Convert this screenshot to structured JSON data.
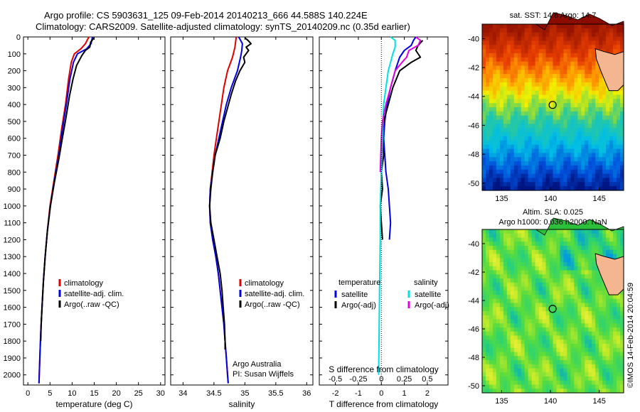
{
  "header": {
    "line1": "Argo profile: CS 5903631_125 09-Feb-2014 20140213_666 44.588S 140.224E",
    "line2": "Climatology: CARS2009. Satellite-adjusted climatology: synTS_20140209.nc (0.35d earlier)"
  },
  "colors": {
    "climatology": "#e00000",
    "satellite": "#0000e0",
    "argo": "#000000",
    "salinity_satellite": "#00e0e0",
    "salinity_argo": "#e000e0"
  },
  "chart_data": [
    {
      "type": "line",
      "panel": "temperature",
      "xlabel": "temperature (deg C)",
      "xlim": [
        -1,
        31
      ],
      "xticks": [
        0,
        5,
        10,
        15,
        20,
        25,
        30
      ],
      "ylim": [
        2060,
        0
      ],
      "yticks": [
        0,
        100,
        200,
        300,
        400,
        500,
        600,
        700,
        800,
        900,
        1000,
        1100,
        1200,
        1300,
        1400,
        1500,
        1600,
        1700,
        1800,
        1900,
        2000
      ],
      "legend": [
        "climatology",
        "satellite-adj. clim.",
        "Argo(..raw -QC)"
      ],
      "series": [
        {
          "name": "climatology",
          "color": "climatology",
          "points": [
            [
              13.8,
              0
            ],
            [
              13,
              40
            ],
            [
              12,
              70
            ],
            [
              10.5,
              100
            ],
            [
              9.8,
              150
            ],
            [
              9.2,
              250
            ],
            [
              8.5,
              400
            ],
            [
              7.6,
              550
            ],
            [
              6.8,
              700
            ],
            [
              5.9,
              850
            ],
            [
              5.0,
              1000
            ],
            [
              4.4,
              1150
            ],
            [
              3.9,
              1300
            ],
            [
              3.5,
              1450
            ],
            [
              3.2,
              1600
            ],
            [
              2.9,
              1750
            ],
            [
              2.7,
              1900
            ],
            [
              2.5,
              2050
            ]
          ]
        },
        {
          "name": "satellite-adj. clim.",
          "color": "satellite",
          "points": [
            [
              14.6,
              0
            ],
            [
              14.3,
              40
            ],
            [
              13.3,
              70
            ],
            [
              11.2,
              100
            ],
            [
              10.3,
              150
            ],
            [
              9.5,
              250
            ],
            [
              8.7,
              400
            ],
            [
              7.8,
              550
            ],
            [
              7.0,
              700
            ],
            [
              6.0,
              850
            ],
            [
              5.1,
              1000
            ],
            [
              4.4,
              1150
            ],
            [
              3.9,
              1300
            ],
            [
              3.5,
              1450
            ],
            [
              3.2,
              1600
            ],
            [
              2.9,
              1750
            ],
            [
              2.7,
              1900
            ],
            [
              2.5,
              2050
            ]
          ]
        },
        {
          "name": "Argo(..raw -QC)",
          "color": "argo",
          "points": [
            [
              15.0,
              5
            ],
            [
              14.2,
              30
            ],
            [
              14.0,
              60
            ],
            [
              13.0,
              80
            ],
            [
              12.2,
              110
            ],
            [
              11.0,
              170
            ],
            [
              10.2,
              250
            ],
            [
              9.4,
              350
            ],
            [
              8.6,
              480
            ],
            [
              7.8,
              600
            ],
            [
              7.0,
              720
            ],
            [
              6.0,
              860
            ],
            [
              5.1,
              1000
            ],
            [
              4.4,
              1150
            ],
            [
              3.9,
              1300
            ],
            [
              3.5,
              1450
            ],
            [
              3.2,
              1600
            ],
            [
              3.0,
              1700
            ],
            [
              2.9,
              1800
            ]
          ]
        }
      ]
    },
    {
      "type": "line",
      "panel": "salinity",
      "xlabel": "salinity",
      "xlim": [
        33.8,
        36.1
      ],
      "xticks": [
        34,
        34.5,
        35,
        35.5,
        36
      ],
      "ylim": [
        2060,
        0
      ],
      "legend": [
        "climatology",
        "satellite-adj. clim.",
        "Argo(..raw -QC)"
      ],
      "annotation": [
        "Argo Australia",
        "PI: Susan Wijffels"
      ],
      "series": [
        {
          "name": "climatology",
          "color": "climatology",
          "points": [
            [
              34.86,
              0
            ],
            [
              34.84,
              60
            ],
            [
              34.8,
              120
            ],
            [
              34.72,
              200
            ],
            [
              34.66,
              300
            ],
            [
              34.62,
              400
            ],
            [
              34.58,
              500
            ],
            [
              34.54,
              600
            ],
            [
              34.5,
              700
            ],
            [
              34.47,
              800
            ],
            [
              34.44,
              900
            ],
            [
              34.43,
              1000
            ],
            [
              34.44,
              1100
            ],
            [
              34.48,
              1200
            ],
            [
              34.53,
              1300
            ],
            [
              34.57,
              1400
            ],
            [
              34.6,
              1500
            ],
            [
              34.63,
              1600
            ],
            [
              34.66,
              1700
            ],
            [
              34.68,
              1800
            ],
            [
              34.7,
              1900
            ],
            [
              34.72,
              2000
            ],
            [
              34.73,
              2050
            ]
          ]
        },
        {
          "name": "satellite-adj. clim.",
          "color": "satellite",
          "points": [
            [
              34.9,
              0
            ],
            [
              34.96,
              40
            ],
            [
              34.95,
              80
            ],
            [
              34.93,
              120
            ],
            [
              34.88,
              200
            ],
            [
              34.78,
              300
            ],
            [
              34.7,
              400
            ],
            [
              34.64,
              500
            ],
            [
              34.58,
              600
            ],
            [
              34.52,
              700
            ],
            [
              34.48,
              800
            ],
            [
              34.44,
              900
            ],
            [
              34.43,
              1000
            ],
            [
              34.44,
              1100
            ],
            [
              34.48,
              1200
            ],
            [
              34.53,
              1300
            ],
            [
              34.57,
              1400
            ],
            [
              34.6,
              1500
            ],
            [
              34.63,
              1600
            ],
            [
              34.66,
              1700
            ],
            [
              34.68,
              1800
            ],
            [
              34.7,
              1900
            ],
            [
              34.72,
              2000
            ],
            [
              34.73,
              2050
            ]
          ]
        },
        {
          "name": "Argo(..raw -QC)",
          "color": "argo",
          "points": [
            [
              35.0,
              5
            ],
            [
              35.05,
              20
            ],
            [
              35.1,
              40
            ],
            [
              35.02,
              60
            ],
            [
              35.06,
              80
            ],
            [
              34.98,
              120
            ],
            [
              35.0,
              150
            ],
            [
              34.92,
              200
            ],
            [
              34.85,
              260
            ],
            [
              34.78,
              340
            ],
            [
              34.72,
              420
            ],
            [
              34.66,
              500
            ],
            [
              34.6,
              600
            ],
            [
              34.52,
              700
            ],
            [
              34.48,
              800
            ],
            [
              34.45,
              900
            ],
            [
              34.43,
              1000
            ],
            [
              34.45,
              1100
            ],
            [
              34.5,
              1200
            ],
            [
              34.55,
              1300
            ],
            [
              34.6,
              1400
            ],
            [
              34.63,
              1500
            ],
            [
              34.65,
              1600
            ],
            [
              34.67,
              1700
            ],
            [
              34.68,
              1800
            ],
            [
              34.68,
              1850
            ]
          ]
        }
      ]
    },
    {
      "type": "line",
      "panel": "difference",
      "xlabel": "T difference from climatology",
      "xlabel_top": "S difference from climatology",
      "xlim": [
        -2.7,
        2.9
      ],
      "xticks": [
        -2,
        -1,
        0,
        1,
        2
      ],
      "xticks_top": [
        -0.5,
        -0.25,
        0,
        0.25,
        0.5
      ],
      "xticks_top_labels": [
        "-0.5",
        "-0.25",
        "0",
        "0.25",
        "0.5"
      ],
      "ylim": [
        2060,
        0
      ],
      "legend_titles": [
        "temperature",
        "salinity"
      ],
      "legend": [
        "satellite",
        "Argo(-adj)",
        "satellite",
        "Argo(-adj)"
      ],
      "series": [
        {
          "name": "satellite",
          "color": "satellite",
          "points": [
            [
              1.5,
              0
            ],
            [
              1.4,
              20
            ],
            [
              1.3,
              50
            ],
            [
              1.0,
              80
            ],
            [
              0.8,
              120
            ],
            [
              0.6,
              200
            ],
            [
              0.4,
              300
            ],
            [
              0.25,
              400
            ],
            [
              0.15,
              500
            ],
            [
              0.1,
              600
            ],
            [
              0.15,
              700
            ],
            [
              0.2,
              800
            ],
            [
              0.3,
              900
            ],
            [
              0.35,
              1000
            ],
            [
              0.4,
              1100
            ],
            [
              0.35,
              1200
            ]
          ]
        },
        {
          "name": "Argo(-adj)",
          "color": "argo",
          "points": [
            [
              1.8,
              20
            ],
            [
              1.6,
              50
            ],
            [
              1.5,
              80
            ],
            [
              1.7,
              120
            ],
            [
              1.3,
              150
            ],
            [
              0.8,
              200
            ],
            [
              0.5,
              300
            ],
            [
              0.3,
              400
            ],
            [
              0.1,
              500
            ],
            [
              0.05,
              600
            ],
            [
              0.1,
              700
            ],
            [
              0.0,
              800
            ],
            [
              0.05,
              900
            ],
            [
              -0.05,
              1000
            ],
            [
              0.0,
              1100
            ],
            [
              0.05,
              1200
            ]
          ]
        },
        {
          "name": "satellite",
          "color": "salinity_satellite",
          "points": [
            [
              0.4,
              0
            ],
            [
              0.6,
              20
            ],
            [
              0.6,
              60
            ],
            [
              0.5,
              100
            ],
            [
              0.4,
              150
            ],
            [
              0.3,
              200
            ],
            [
              0.2,
              300
            ],
            [
              0.1,
              400
            ],
            [
              0.05,
              600
            ],
            [
              0.0,
              800
            ],
            [
              -0.05,
              1000
            ],
            [
              -0.05,
              1200
            ],
            [
              -0.08,
              1500
            ],
            [
              -0.1,
              1800
            ],
            [
              -0.12,
              2000
            ]
          ]
        },
        {
          "name": "Argo(-adj)",
          "color": "salinity_argo",
          "points": [
            [
              1.5,
              0
            ],
            [
              1.7,
              20
            ],
            [
              1.6,
              50
            ],
            [
              1.2,
              80
            ],
            [
              1.1,
              120
            ],
            [
              0.9,
              150
            ],
            [
              0.6,
              200
            ],
            [
              0.4,
              300
            ],
            [
              0.2,
              400
            ],
            [
              0.05,
              500
            ],
            [
              0.0,
              600
            ],
            [
              -0.05,
              800
            ]
          ]
        }
      ]
    },
    {
      "type": "heatmap",
      "panel": "sst_map",
      "title": "sat. SST: 14.8  Argo: 14.7",
      "xlim": [
        133,
        147.5
      ],
      "ylim": [
        -50.5,
        -39
      ],
      "xticks": [
        135,
        140,
        145
      ],
      "yticks": [
        -40,
        -42,
        -44,
        -46,
        -48,
        -50
      ],
      "marker": {
        "lon": 140.224,
        "lat": -44.588
      }
    },
    {
      "type": "heatmap",
      "panel": "sla_map",
      "title": [
        "Altim. SLA: 0.025",
        "Argo h1000: 0.036 h2000: NaN"
      ],
      "xlim": [
        133,
        147.5
      ],
      "ylim": [
        -50.5,
        -39
      ],
      "xticks": [
        135,
        140,
        145
      ],
      "yticks": [
        -40,
        -42,
        -44,
        -46,
        -48,
        -50
      ],
      "marker": {
        "lon": 140.224,
        "lat": -44.588
      }
    }
  ],
  "footer": {
    "stamp": "©IMOS 14-Feb-2014 20:04:59"
  }
}
